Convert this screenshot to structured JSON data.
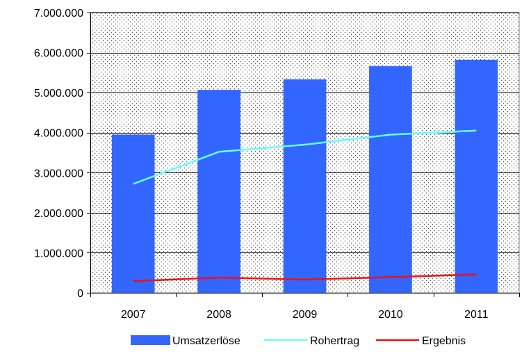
{
  "chart_data": {
    "type": "bar",
    "categories": [
      "2007",
      "2008",
      "2009",
      "2010",
      "2011"
    ],
    "ylim": [
      0,
      7000000
    ],
    "yticks": [
      {
        "value": 0,
        "label": "0"
      },
      {
        "value": 1000000,
        "label": "1.000.000"
      },
      {
        "value": 2000000,
        "label": "2.000.000"
      },
      {
        "value": 3000000,
        "label": "3.000.000"
      },
      {
        "value": 4000000,
        "label": "4.000.000"
      },
      {
        "value": 5000000,
        "label": "5.000.000"
      },
      {
        "value": 6000000,
        "label": "6.000.000"
      },
      {
        "value": 7000000,
        "label": "7.000.000"
      }
    ],
    "grid": true,
    "legend_position": "bottom",
    "series": [
      {
        "name": "Umsatzerlöse",
        "kind": "bar",
        "color": "#3366ff",
        "values": [
          3950000,
          5070000,
          5330000,
          5660000,
          5820000
        ]
      },
      {
        "name": "Rohertrag",
        "kind": "line",
        "color": "#66ffff",
        "values": [
          2720000,
          3520000,
          3700000,
          3950000,
          4050000
        ]
      },
      {
        "name": "Ergebnis",
        "kind": "line",
        "color": "#ee1111",
        "values": [
          290000,
          380000,
          330000,
          390000,
          460000
        ]
      }
    ]
  }
}
